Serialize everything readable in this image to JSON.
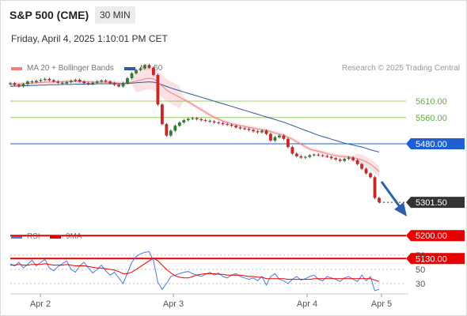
{
  "header": {
    "title": "S&P 500 (CME)",
    "timeframe": "30 MIN",
    "date": "Friday, April 4, 2025 1:10:01 PM CET"
  },
  "legend": {
    "ma20": "MA 20 + Bollinger Bands",
    "ma50": "MA 50",
    "credit": "Research © 2025 Trading Central",
    "rsi": "RSI",
    "ma9": "9MA"
  },
  "colors": {
    "ma20": "#f08080",
    "ma50": "#2e5b9a",
    "resistance": "#9ccc65",
    "pivot": "#1f5fd1",
    "support": "#e60000",
    "last": "#333333",
    "rsi": "#4f79d4",
    "rsi_ma": "#e60000"
  },
  "chart_data": [
    {
      "type": "line",
      "name": "price",
      "x_ticks": [
        "Apr 2",
        "Apr 3",
        "Apr 4",
        "Apr 5"
      ],
      "levels": [
        {
          "label": "5610.00",
          "value": 5610,
          "kind": "resistance"
        },
        {
          "label": "5560.00",
          "value": 5560,
          "kind": "resistance"
        },
        {
          "label": "5480.00",
          "value": 5480,
          "kind": "pivot"
        },
        {
          "label": "5301.50",
          "value": 5301.5,
          "kind": "last"
        },
        {
          "label": "5200.00",
          "value": 5200,
          "kind": "support"
        },
        {
          "label": "5130.00",
          "value": 5130,
          "kind": "support"
        }
      ],
      "close": [
        5665,
        5660,
        5655,
        5662,
        5670,
        5668,
        5672,
        5675,
        5678,
        5674,
        5670,
        5666,
        5664,
        5668,
        5672,
        5675,
        5670,
        5665,
        5662,
        5666,
        5670,
        5673,
        5670,
        5665,
        5660,
        5655,
        5665,
        5680,
        5695,
        5705,
        5710,
        5720,
        5712,
        5690,
        5600,
        5540,
        5505,
        5520,
        5535,
        5545,
        5552,
        5556,
        5558,
        5555,
        5552,
        5550,
        5548,
        5545,
        5543,
        5540,
        5538,
        5535,
        5530,
        5527,
        5525,
        5522,
        5518,
        5515,
        5520,
        5510,
        5490,
        5500,
        5505,
        5495,
        5470,
        5450,
        5442,
        5438,
        5440,
        5445,
        5447,
        5445,
        5443,
        5440,
        5436,
        5432,
        5428,
        5434,
        5438,
        5430,
        5418,
        5404,
        5390,
        5378,
        5315,
        5302
      ],
      "ma20": [
        5660,
        5661,
        5662,
        5663,
        5664,
        5665,
        5666,
        5667,
        5668,
        5668,
        5669,
        5669,
        5669,
        5670,
        5670,
        5670,
        5670,
        5669,
        5669,
        5668,
        5668,
        5668,
        5668,
        5667,
        5666,
        5665,
        5665,
        5666,
        5668,
        5671,
        5674,
        5678,
        5680,
        5678,
        5668,
        5656,
        5644,
        5636,
        5629,
        5622,
        5615,
        5608,
        5600,
        5592,
        5584,
        5576,
        5568,
        5561,
        5555,
        5549,
        5545,
        5541,
        5538,
        5535,
        5533,
        5530,
        5528,
        5525,
        5523,
        5521,
        5517,
        5513,
        5510,
        5506,
        5500,
        5494,
        5486,
        5479,
        5471,
        5464,
        5460,
        5457,
        5454,
        5450,
        5447,
        5444,
        5442,
        5441,
        5440,
        5438,
        5435,
        5431,
        5425,
        5418,
        5407,
        5395
      ],
      "ma50": [
        5655,
        5656,
        5656,
        5657,
        5657,
        5658,
        5658,
        5659,
        5659,
        5660,
        5660,
        5660,
        5661,
        5661,
        5661,
        5662,
        5662,
        5662,
        5662,
        5662,
        5663,
        5663,
        5663,
        5663,
        5663,
        5663,
        5663,
        5664,
        5665,
        5666,
        5667,
        5668,
        5669,
        5668,
        5665,
        5660,
        5655,
        5650,
        5646,
        5642,
        5638,
        5634,
        5630,
        5626,
        5622,
        5618,
        5614,
        5610,
        5606,
        5602,
        5598,
        5594,
        5590,
        5586,
        5582,
        5578,
        5574,
        5570,
        5566,
        5562,
        5558,
        5554,
        5550,
        5546,
        5541,
        5536,
        5531,
        5526,
        5521,
        5516,
        5511,
        5506,
        5502,
        5498,
        5494,
        5490,
        5486,
        5482,
        5479,
        5476,
        5473,
        5470,
        5466,
        5462,
        5458,
        5455
      ]
    },
    {
      "type": "line",
      "name": "RSI",
      "y_ticks": [
        "70",
        "50",
        "30"
      ],
      "ylim": [
        10,
        80
      ],
      "rsi": [
        58,
        55,
        60,
        52,
        57,
        63,
        55,
        60,
        64,
        52,
        48,
        54,
        58,
        62,
        50,
        46,
        55,
        60,
        52,
        45,
        50,
        56,
        48,
        42,
        46,
        38,
        30,
        45,
        60,
        68,
        72,
        74,
        75,
        62,
        32,
        22,
        30,
        40,
        42,
        44,
        46,
        47,
        44,
        42,
        40,
        43,
        46,
        42,
        45,
        40,
        38,
        42,
        44,
        40,
        38,
        36,
        38,
        34,
        40,
        28,
        40,
        44,
        36,
        34,
        30,
        36,
        40,
        35,
        37,
        40,
        42,
        36,
        34,
        40,
        38,
        36,
        33,
        38,
        40,
        36,
        33,
        42,
        34,
        40,
        20,
        22
      ],
      "rsi_ma": [
        56,
        56,
        57,
        56,
        56,
        57,
        57,
        57,
        58,
        57,
        56,
        56,
        56,
        57,
        56,
        55,
        55,
        55,
        54,
        53,
        52,
        52,
        51,
        50,
        49,
        47,
        44,
        44,
        46,
        50,
        54,
        58,
        62,
        66,
        62,
        56,
        50,
        45,
        41,
        39,
        38,
        38,
        40,
        42,
        43,
        44,
        44,
        44,
        43,
        43,
        42,
        42,
        42,
        42,
        41,
        40,
        40,
        39,
        39,
        37,
        37,
        37,
        37,
        37,
        36,
        36,
        36,
        36,
        36,
        36,
        37,
        37,
        37,
        37,
        37,
        37,
        37,
        37,
        37,
        37,
        37,
        37,
        37,
        37,
        35,
        33
      ]
    }
  ]
}
